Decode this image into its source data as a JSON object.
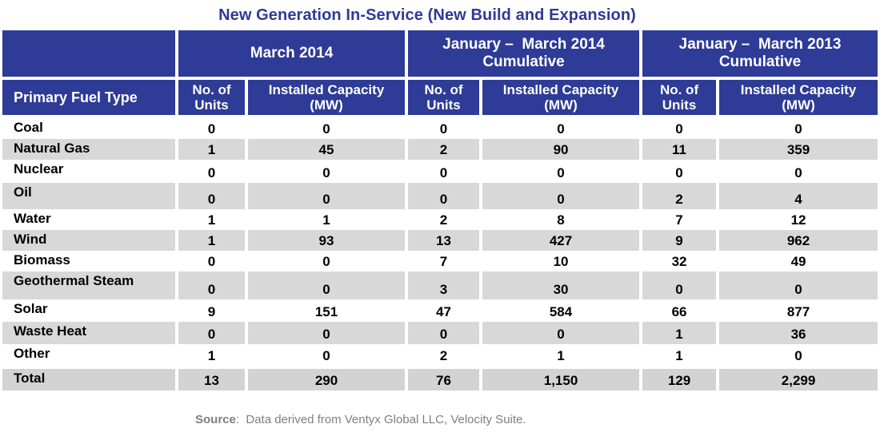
{
  "title": "New Generation In-Service (New Build and Expansion)",
  "header": {
    "group_march_2014": "March 2014",
    "group_jan_mar_2014_line1": "January –  March 2014",
    "group_jan_mar_2014_line2": "Cumulative",
    "group_jan_mar_2013_line1": "January –  March 2013",
    "group_jan_mar_2013_line2": "Cumulative",
    "fuel_type": "Primary Fuel Type",
    "units_line1": "No. of",
    "units_line2": "Units",
    "capacity_line1": "Installed Capacity",
    "capacity_line2": "(MW)"
  },
  "rows": [
    {
      "fuel": "Coal",
      "m14_units": "0",
      "m14_mw": "0",
      "q14_units": "0",
      "q14_mw": "0",
      "q13_units": "0",
      "q13_mw": "0"
    },
    {
      "fuel": "Natural Gas",
      "m14_units": "1",
      "m14_mw": "45",
      "q14_units": "2",
      "q14_mw": "90",
      "q13_units": "11",
      "q13_mw": "359"
    },
    {
      "fuel": "Nuclear",
      "m14_units": "0",
      "m14_mw": "0",
      "q14_units": "0",
      "q14_mw": "0",
      "q13_units": "0",
      "q13_mw": "0"
    },
    {
      "fuel": "Oil",
      "m14_units": "0",
      "m14_mw": "0",
      "q14_units": "0",
      "q14_mw": "0",
      "q13_units": "2",
      "q13_mw": "4"
    },
    {
      "fuel": "Water",
      "m14_units": "1",
      "m14_mw": "1",
      "q14_units": "2",
      "q14_mw": "8",
      "q13_units": "7",
      "q13_mw": "12"
    },
    {
      "fuel": "Wind",
      "m14_units": "1",
      "m14_mw": "93",
      "q14_units": "13",
      "q14_mw": "427",
      "q13_units": "9",
      "q13_mw": "962"
    },
    {
      "fuel": "Biomass",
      "m14_units": "0",
      "m14_mw": "0",
      "q14_units": "7",
      "q14_mw": "10",
      "q13_units": "32",
      "q13_mw": "49"
    },
    {
      "fuel": "Geothermal Steam",
      "m14_units": "0",
      "m14_mw": "0",
      "q14_units": "3",
      "q14_mw": "30",
      "q13_units": "0",
      "q13_mw": "0"
    },
    {
      "fuel": "Solar",
      "m14_units": "9",
      "m14_mw": "151",
      "q14_units": "47",
      "q14_mw": "584",
      "q13_units": "66",
      "q13_mw": "877"
    },
    {
      "fuel": "Waste Heat",
      "m14_units": "0",
      "m14_mw": "0",
      "q14_units": "0",
      "q14_mw": "0",
      "q13_units": "1",
      "q13_mw": "36"
    },
    {
      "fuel": "Other",
      "m14_units": "1",
      "m14_mw": "0",
      "q14_units": "2",
      "q14_mw": "1",
      "q13_units": "1",
      "q13_mw": "0"
    }
  ],
  "total": {
    "fuel": "Total",
    "m14_units": "13",
    "m14_mw": "290",
    "q14_units": "76",
    "q14_mw": "1,150",
    "q13_units": "129",
    "q13_mw": "2,299"
  },
  "source": {
    "label": "Source",
    "text": ":  Data derived from Ventyx Global LLC, Velocity Suite."
  },
  "colors": {
    "header_bg": "#2e3b97",
    "title_text": "#2e3a97",
    "row_gray": "#d8d8d8",
    "row_white": "#ffffff",
    "source_text": "#7f7f7f"
  }
}
